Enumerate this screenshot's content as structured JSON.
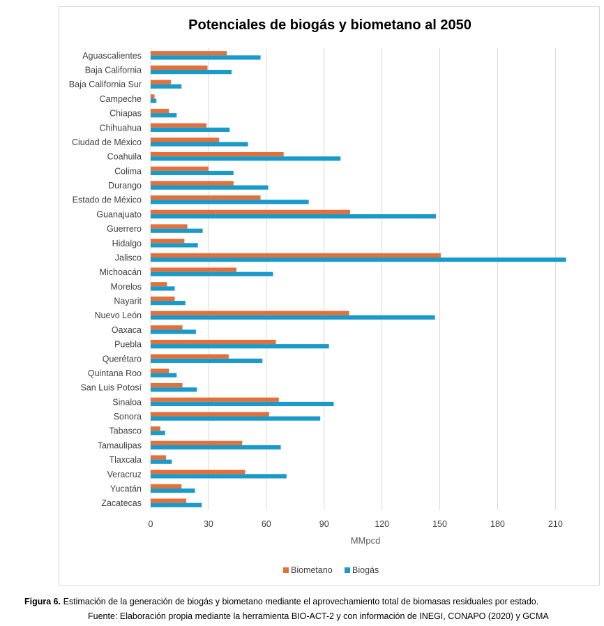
{
  "chart_data": {
    "type": "bar",
    "orientation": "horizontal",
    "title": "Potenciales de biogás y biometano al 2050",
    "xlabel": "MMpcd",
    "ylabel": "",
    "xlim": [
      0,
      220
    ],
    "xticks": [
      0,
      30,
      60,
      90,
      120,
      150,
      180,
      210
    ],
    "grid": true,
    "legend_position": "bottom",
    "categories": [
      "Aguascalientes",
      "Baja California",
      "Baja California Sur",
      "Campeche",
      "Chiapas",
      "Chihuahua",
      "Ciudad de México",
      "Coahuila",
      "Colima",
      "Durango",
      "Estado de México",
      "Guanajuato",
      "Guerrero",
      "Hidalgo",
      "Jalisco",
      "Michoacán",
      "Morelos",
      "Nayarit",
      "Nuevo León",
      "Oaxaca",
      "Puebla",
      "Querétaro",
      "Quintana Roo",
      "San Luis Potosí",
      "Sinaloa",
      "Sonora",
      "Tabasco",
      "Tamaulipas",
      "Tlaxcala",
      "Veracruz",
      "Yucatán",
      "Zacatecas"
    ],
    "series": [
      {
        "name": "Biometano",
        "color": "#e2703a",
        "values": [
          39.5,
          29.5,
          10.5,
          2.0,
          9.5,
          29.0,
          35.5,
          69.0,
          30.0,
          43.0,
          57.0,
          103.5,
          19.0,
          17.5,
          150.5,
          44.5,
          8.5,
          12.5,
          103.0,
          16.5,
          65.0,
          40.5,
          9.5,
          16.5,
          66.5,
          61.5,
          5.0,
          47.5,
          8.0,
          49.0,
          16.0,
          18.5
        ]
      },
      {
        "name": "Biogás",
        "color": "#1a9ac9",
        "values": [
          57.0,
          42.0,
          16.0,
          3.0,
          13.5,
          41.0,
          50.5,
          98.5,
          43.0,
          61.0,
          82.0,
          148.0,
          27.0,
          24.5,
          215.5,
          63.5,
          12.5,
          18.0,
          147.5,
          23.5,
          92.5,
          58.0,
          13.5,
          24.0,
          95.0,
          88.0,
          7.5,
          67.5,
          11.0,
          70.5,
          23.0,
          26.5
        ]
      }
    ]
  },
  "caption": {
    "figure_label": "Figura 6.",
    "figure_text": " Estimación de la generación de biogás y biometano mediante el aprovechamiento total de biomasas residuales por estado.",
    "source": "Fuente: Elaboración propia mediante la herramienta BIO-ACT-2 y con información de INEGI, CONAPO (2020) y GCMA"
  }
}
